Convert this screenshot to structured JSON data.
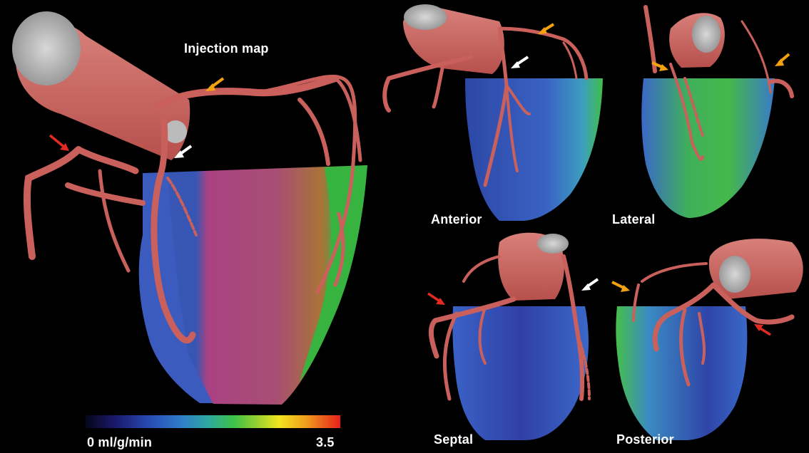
{
  "figure": {
    "main_title": "Injection map",
    "views": {
      "anterior": "Anterior",
      "lateral": "Lateral",
      "septal": "Septal",
      "posterior": "Posterior"
    },
    "color_scale": {
      "min_label": "0 ml/g/min",
      "max_label": "3.5",
      "colors": [
        "#06061a",
        "#2a4fb8",
        "#2fa8a0",
        "#3cc24a",
        "#f2e51f",
        "#f0a21c",
        "#e8211b"
      ]
    },
    "arrow_colors": {
      "red": "#e02a22",
      "orange": "#f2a20f",
      "white": "#ffffff"
    },
    "vessel_color": "#c9605c",
    "perfusion_colors": {
      "low": "#3a5fc6",
      "mid": "#3cc24a",
      "high": "#c34a86"
    }
  }
}
